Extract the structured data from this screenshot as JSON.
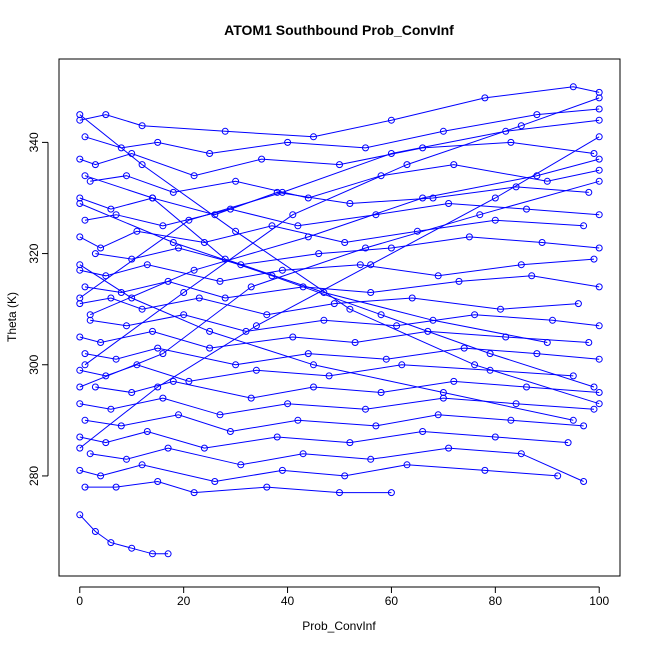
{
  "chart_data": {
    "type": "line",
    "title": "ATOM1 Southbound Prob_ConvInf",
    "xlabel": "Prob_ConvInf",
    "ylabel": "Theta (K)",
    "xlim": [
      -4,
      104
    ],
    "ylim": [
      262,
      355
    ],
    "x_ticks": [
      "0",
      "20",
      "40",
      "60",
      "80",
      "100"
    ],
    "y_ticks": [
      "280",
      "300",
      "320",
      "340"
    ],
    "markers": "open-circle",
    "grid": false,
    "legend": "none",
    "color": "#0000ff",
    "series": [
      {
        "x": [
          0,
          5,
          12,
          28,
          45,
          60,
          78,
          95,
          100
        ],
        "y": [
          344,
          345,
          343,
          342,
          341,
          344,
          348,
          350,
          349
        ]
      },
      {
        "x": [
          1,
          8,
          15,
          25,
          40,
          55,
          70,
          88,
          100
        ],
        "y": [
          341,
          339,
          340,
          338,
          340,
          339,
          342,
          345,
          346
        ]
      },
      {
        "x": [
          0,
          3,
          10,
          22,
          35,
          50,
          66,
          83,
          99
        ],
        "y": [
          337,
          336,
          338,
          334,
          337,
          336,
          339,
          340,
          338
        ]
      },
      {
        "x": [
          2,
          9,
          18,
          30,
          44,
          58,
          72,
          90,
          100
        ],
        "y": [
          333,
          334,
          331,
          333,
          330,
          334,
          336,
          333,
          335
        ]
      },
      {
        "x": [
          0,
          6,
          14,
          26,
          38,
          52,
          68,
          84,
          98
        ],
        "y": [
          330,
          328,
          330,
          327,
          331,
          329,
          330,
          332,
          331
        ]
      },
      {
        "x": [
          1,
          7,
          16,
          29,
          42,
          57,
          71,
          86,
          100
        ],
        "y": [
          326,
          327,
          325,
          328,
          325,
          327,
          329,
          328,
          327
        ]
      },
      {
        "x": [
          0,
          4,
          11,
          24,
          37,
          51,
          65,
          80,
          97
        ],
        "y": [
          323,
          321,
          324,
          322,
          325,
          322,
          324,
          326,
          325
        ]
      },
      {
        "x": [
          3,
          10,
          19,
          31,
          46,
          60,
          75,
          89,
          100
        ],
        "y": [
          320,
          319,
          321,
          318,
          320,
          321,
          323,
          322,
          321
        ]
      },
      {
        "x": [
          0,
          5,
          13,
          27,
          39,
          54,
          69,
          85,
          99
        ],
        "y": [
          317,
          316,
          318,
          315,
          317,
          318,
          316,
          318,
          319
        ]
      },
      {
        "x": [
          1,
          8,
          17,
          28,
          43,
          56,
          73,
          87,
          100
        ],
        "y": [
          314,
          313,
          315,
          312,
          314,
          313,
          315,
          316,
          314
        ]
      },
      {
        "x": [
          0,
          6,
          12,
          23,
          36,
          49,
          64,
          81,
          96
        ],
        "y": [
          311,
          312,
          310,
          312,
          309,
          311,
          312,
          310,
          311
        ]
      },
      {
        "x": [
          2,
          9,
          20,
          32,
          47,
          61,
          76,
          91,
          100
        ],
        "y": [
          308,
          307,
          309,
          306,
          308,
          307,
          309,
          308,
          307
        ]
      },
      {
        "x": [
          0,
          4,
          14,
          25,
          41,
          53,
          67,
          82,
          98
        ],
        "y": [
          305,
          304,
          306,
          303,
          305,
          304,
          306,
          305,
          304
        ]
      },
      {
        "x": [
          1,
          7,
          15,
          30,
          44,
          59,
          74,
          88,
          100
        ],
        "y": [
          302,
          301,
          303,
          300,
          302,
          301,
          303,
          302,
          301
        ]
      },
      {
        "x": [
          0,
          5,
          11,
          21,
          34,
          48,
          62,
          79,
          95
        ],
        "y": [
          299,
          298,
          300,
          297,
          299,
          298,
          300,
          299,
          298
        ]
      },
      {
        "x": [
          3,
          10,
          18,
          33,
          45,
          58,
          72,
          86,
          100
        ],
        "y": [
          296,
          295,
          297,
          294,
          296,
          295,
          297,
          296,
          295
        ]
      },
      {
        "x": [
          0,
          6,
          16,
          27,
          40,
          55,
          70,
          84,
          99
        ],
        "y": [
          293,
          292,
          294,
          291,
          293,
          292,
          294,
          293,
          292
        ]
      },
      {
        "x": [
          1,
          8,
          19,
          29,
          42,
          57,
          69,
          83,
          97
        ],
        "y": [
          290,
          289,
          291,
          288,
          290,
          289,
          291,
          290,
          289
        ]
      },
      {
        "x": [
          0,
          5,
          13,
          24,
          38,
          52,
          66,
          80,
          94
        ],
        "y": [
          287,
          286,
          288,
          285,
          287,
          286,
          288,
          287,
          286
        ]
      },
      {
        "x": [
          2,
          9,
          17,
          31,
          43,
          56,
          71,
          85,
          97
        ],
        "y": [
          284,
          283,
          285,
          282,
          284,
          283,
          285,
          284,
          279
        ]
      },
      {
        "x": [
          0,
          4,
          12,
          26,
          39,
          51,
          63,
          78,
          92
        ],
        "y": [
          281,
          280,
          282,
          279,
          281,
          280,
          282,
          281,
          280
        ]
      },
      {
        "x": [
          1,
          7,
          15,
          22,
          36,
          50,
          60
        ],
        "y": [
          278,
          278,
          279,
          277,
          278,
          277,
          277
        ]
      },
      {
        "x": [
          0,
          3,
          6,
          10,
          14,
          17
        ],
        "y": [
          273,
          270,
          268,
          267,
          266,
          266
        ]
      },
      {
        "x": [
          0,
          12,
          30,
          52,
          76,
          100
        ],
        "y": [
          345,
          336,
          324,
          310,
          300,
          293
        ]
      },
      {
        "x": [
          0,
          15,
          34,
          56,
          80,
          100
        ],
        "y": [
          285,
          296,
          307,
          318,
          330,
          341
        ]
      },
      {
        "x": [
          1,
          20,
          41,
          63,
          85,
          100
        ],
        "y": [
          300,
          313,
          327,
          336,
          343,
          348
        ]
      },
      {
        "x": [
          0,
          18,
          37,
          58,
          79,
          99
        ],
        "y": [
          329,
          322,
          316,
          309,
          302,
          296
        ]
      },
      {
        "x": [
          2,
          22,
          44,
          66,
          88,
          100
        ],
        "y": [
          309,
          317,
          323,
          330,
          334,
          337
        ]
      },
      {
        "x": [
          0,
          10,
          25,
          45,
          70,
          95
        ],
        "y": [
          318,
          312,
          306,
          300,
          295,
          290
        ]
      },
      {
        "x": [
          0,
          16,
          33,
          55,
          77,
          100
        ],
        "y": [
          296,
          302,
          314,
          321,
          327,
          333
        ]
      },
      {
        "x": [
          1,
          14,
          28,
          47,
          68,
          90
        ],
        "y": [
          334,
          330,
          319,
          313,
          308,
          304
        ]
      },
      {
        "x": [
          0,
          21,
          39,
          60,
          82,
          100
        ],
        "y": [
          312,
          326,
          331,
          338,
          342,
          344
        ]
      }
    ]
  }
}
